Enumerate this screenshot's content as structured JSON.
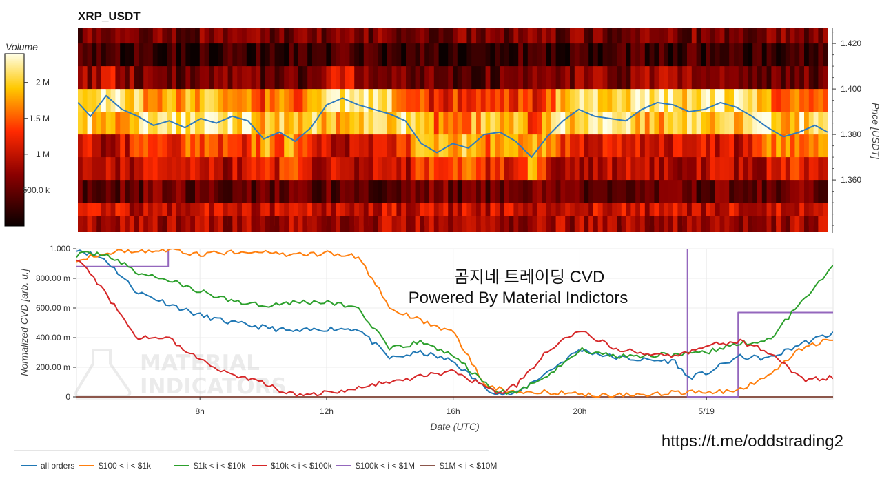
{
  "title": "XRP_USDT",
  "colorbar": {
    "title": "Volume",
    "ticks": [
      "2 M",
      "1.5 M",
      "1 M",
      "500.0 k"
    ]
  },
  "heatmap": {
    "y_axis_label": "Price [USDT]",
    "y_ticks": [
      1.42,
      1.4,
      1.38,
      1.36
    ],
    "y_tick_labels": [
      "1.420",
      "1.400",
      "1.380",
      "1.360"
    ],
    "ylim": [
      1.337,
      1.427
    ]
  },
  "cvd": {
    "y_axis_label": "Normalized CVD [arb. u.]",
    "x_axis_label": "Date (UTC)",
    "y_tick_labels": [
      "1.000",
      "800.00 m",
      "600.00 m",
      "400.00 m",
      "200.00 m",
      "0"
    ],
    "x_tick_labels": [
      "8h",
      "12h",
      "16h",
      "20h",
      "5/19"
    ]
  },
  "overlay": {
    "title_ko": "곰지네 트레이딩 CVD",
    "subtitle": "Powered By Material Indictors",
    "watermark_line1": "MATERIAL",
    "watermark_line2": "INDICATORS",
    "link": "https://t.me/oddstrading2"
  },
  "legend": [
    {
      "label": "all orders",
      "color": "#1f77b4"
    },
    {
      "label": "$100 < i < $1k",
      "color": "#ff7f0e"
    },
    {
      "label": "$1k < i < $10k",
      "color": "#2ca02c"
    },
    {
      "label": "$10k < i < $100k",
      "color": "#d62728"
    },
    {
      "label": "$100k < i < $1M",
      "color": "#9467bd"
    },
    {
      "label": "$1M < i < $10M",
      "color": "#8c564b"
    }
  ],
  "chart_data": [
    {
      "type": "heatmap",
      "title": "XRP_USDT",
      "ylabel": "Price [USDT]",
      "x_range_hours": [
        4.1,
        27.9
      ],
      "ylim": [
        1.337,
        1.427
      ],
      "price_bins": [
        1.425,
        1.415,
        1.405,
        1.395,
        1.385,
        1.375,
        1.365,
        1.355,
        1.345,
        1.339
      ],
      "relative_volume_profile": [
        0.35,
        0.15,
        0.3,
        0.75,
        0.7,
        0.5,
        0.55,
        0.3,
        0.6,
        0.5
      ],
      "colorbar_range": [
        0,
        2400000
      ],
      "price_series": {
        "name": "price",
        "x_hours": [
          4.1,
          4.5,
          5,
          5.5,
          6,
          6.5,
          7,
          7.5,
          8,
          8.5,
          9,
          9.5,
          10,
          10.5,
          11,
          11.5,
          12,
          12.5,
          13,
          13.5,
          14,
          14.5,
          15,
          15.5,
          16,
          16.5,
          17,
          17.5,
          18,
          18.5,
          19,
          19.5,
          20,
          20.5,
          21,
          21.5,
          22,
          22.5,
          23,
          23.5,
          24,
          24.5,
          25,
          25.5,
          26,
          26.5,
          27,
          27.5,
          27.9
        ],
        "values": [
          1.394,
          1.388,
          1.397,
          1.391,
          1.388,
          1.384,
          1.386,
          1.383,
          1.387,
          1.385,
          1.388,
          1.386,
          1.378,
          1.381,
          1.377,
          1.383,
          1.393,
          1.396,
          1.393,
          1.391,
          1.389,
          1.386,
          1.376,
          1.372,
          1.376,
          1.374,
          1.38,
          1.381,
          1.377,
          1.37,
          1.379,
          1.386,
          1.391,
          1.388,
          1.387,
          1.386,
          1.391,
          1.394,
          1.393,
          1.39,
          1.391,
          1.394,
          1.392,
          1.388,
          1.383,
          1.379,
          1.381,
          1.384,
          1.381
        ]
      }
    },
    {
      "type": "line",
      "xlabel": "Date (UTC)",
      "ylabel": "Normalized CVD [arb. u.]",
      "x_unit": "hours since 0h UTC (24 = 5/19 0h)",
      "ylim": [
        0,
        1.0
      ],
      "xlim": [
        4.1,
        28.0
      ],
      "x": [
        4.1,
        5,
        6,
        7,
        8,
        9,
        10,
        11,
        12,
        13,
        14,
        15,
        16,
        17,
        17.5,
        18,
        18.5,
        19,
        20,
        21,
        22,
        23,
        23.4,
        24,
        25,
        26,
        27,
        28
      ],
      "series": [
        {
          "name": "all orders",
          "values": [
            1.0,
            0.93,
            0.71,
            0.63,
            0.55,
            0.5,
            0.47,
            0.44,
            0.46,
            0.46,
            0.26,
            0.3,
            0.24,
            0.06,
            0.02,
            0.02,
            0.1,
            0.17,
            0.32,
            0.27,
            0.25,
            0.24,
            0.13,
            0.16,
            0.27,
            0.26,
            0.36,
            0.43
          ]
        },
        {
          "name": "$100 < i < $1k",
          "values": [
            0.93,
            0.97,
            0.99,
            0.99,
            0.96,
            0.98,
            0.97,
            0.96,
            0.97,
            0.95,
            0.6,
            0.51,
            0.43,
            0.09,
            0.05,
            0.03,
            0.03,
            0.03,
            0.02,
            0.01,
            0.01,
            0.03,
            0.03,
            0.03,
            0.05,
            0.14,
            0.33,
            0.39
          ]
        },
        {
          "name": "$1k < i < $10k",
          "values": [
            0.96,
            0.97,
            0.84,
            0.79,
            0.71,
            0.65,
            0.62,
            0.64,
            0.64,
            0.6,
            0.32,
            0.37,
            0.28,
            0.09,
            0.03,
            0.02,
            0.1,
            0.14,
            0.32,
            0.28,
            0.28,
            0.29,
            0.28,
            0.3,
            0.36,
            0.38,
            0.65,
            0.88
          ]
        },
        {
          "name": "$10k < i < $100k",
          "values": [
            0.94,
            0.7,
            0.4,
            0.4,
            0.25,
            0.15,
            0.09,
            0.01,
            0.03,
            0.06,
            0.1,
            0.14,
            0.17,
            0.07,
            0.02,
            0.08,
            0.2,
            0.31,
            0.46,
            0.33,
            0.3,
            0.28,
            0.3,
            0.34,
            0.38,
            0.3,
            0.12,
            0.13
          ]
        },
        {
          "name": "$100k < i < $1M",
          "values": [
            0.88,
            0.88,
            0.88,
            1.0,
            1.0,
            1.0,
            1.0,
            1.0,
            1.0,
            1.0,
            1.0,
            1.0,
            1.0,
            1.0,
            1.0,
            1.0,
            1.0,
            1.0,
            1.0,
            1.0,
            1.0,
            1.0,
            0.0,
            0.0,
            0.57,
            0.57,
            0.57,
            0.57
          ]
        },
        {
          "name": "$1M < i < $10M",
          "values": [
            0,
            0,
            0,
            0,
            0,
            0,
            0,
            0,
            0,
            0,
            0,
            0,
            0,
            0,
            0,
            0,
            0,
            0,
            0,
            0,
            0,
            0,
            0,
            0,
            0,
            0,
            0,
            0
          ]
        }
      ]
    }
  ]
}
